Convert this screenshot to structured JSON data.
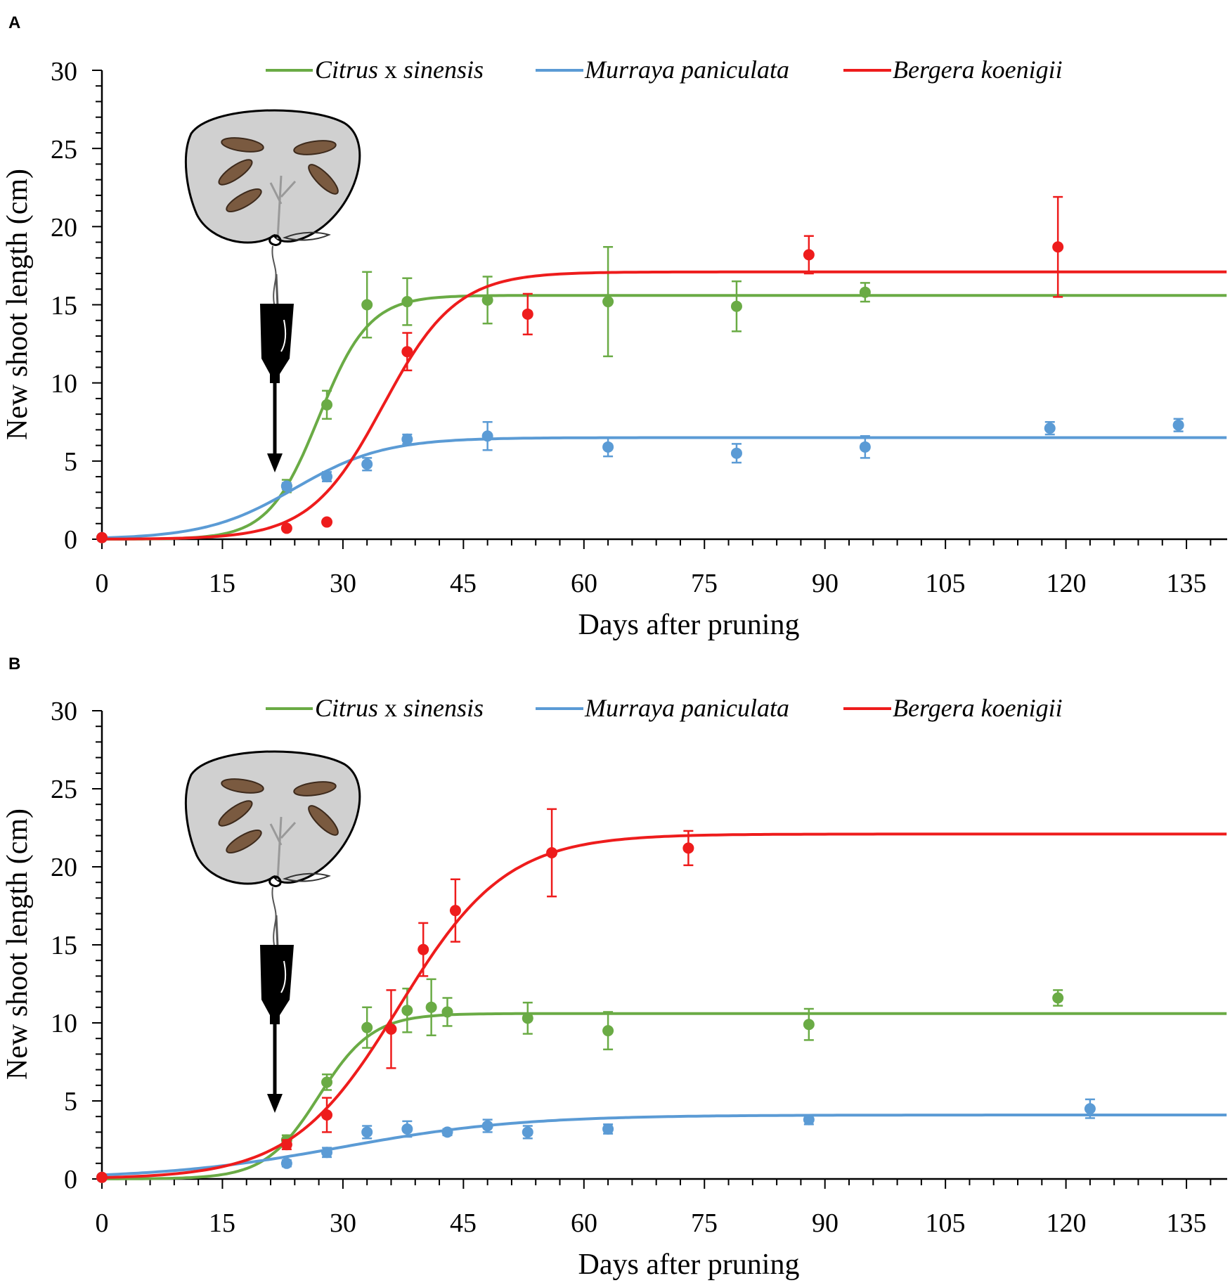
{
  "chart_data": [
    {
      "type": "line",
      "panel": "A",
      "title": "",
      "xlabel": "Days after pruning",
      "ylabel": "New shoot length (cm)",
      "xlim": [
        0,
        140
      ],
      "ylim": [
        0,
        30
      ],
      "xticks": [
        "0",
        "15",
        "30",
        "45",
        "60",
        "75",
        "90",
        "105",
        "120",
        "135"
      ],
      "yticks": [
        "0",
        "5",
        "10",
        "15",
        "20",
        "25",
        "30"
      ],
      "legend_position": "top",
      "legend": {
        "prefix": "Citrus",
        "sep": " x ",
        "suffix": "sinensis"
      },
      "series": [
        {
          "name": "Citrus x sinensis",
          "color": "#6aab45",
          "fit": {
            "asymptote": 15.6,
            "k": 0.32,
            "midpoint": 27
          },
          "points": [
            [
              0,
              0.1,
              0
            ],
            [
              23,
              3.4,
              0.4
            ],
            [
              28,
              8.6,
              0.9
            ],
            [
              33,
              15.0,
              2.1
            ],
            [
              38,
              15.2,
              1.5
            ],
            [
              48,
              15.3,
              1.5
            ],
            [
              63,
              15.2,
              3.5
            ],
            [
              79,
              14.9,
              1.6
            ],
            [
              95,
              15.8,
              0.6
            ]
          ]
        },
        {
          "name": "Murraya paniculata",
          "color": "#5b9bd5",
          "fit": {
            "asymptote": 6.5,
            "k": 0.18,
            "midpoint": 24
          },
          "points": [
            [
              0,
              0.1,
              0
            ],
            [
              23,
              3.4,
              0.2
            ],
            [
              28,
              4.0,
              0.3
            ],
            [
              33,
              4.8,
              0.4
            ],
            [
              38,
              6.4,
              0.3
            ],
            [
              48,
              6.6,
              0.9
            ],
            [
              63,
              5.9,
              0.6
            ],
            [
              79,
              5.5,
              0.6
            ],
            [
              95,
              5.9,
              0.7
            ],
            [
              118,
              7.1,
              0.4
            ],
            [
              134,
              7.3,
              0.4
            ]
          ]
        },
        {
          "name": "Bergera koenigii",
          "color": "#ee1c1c",
          "fit": {
            "asymptote": 17.1,
            "k": 0.22,
            "midpoint": 35
          },
          "points": [
            [
              0,
              0.1,
              0
            ],
            [
              23,
              0.7,
              0
            ],
            [
              28,
              1.1,
              0
            ],
            [
              38,
              12.0,
              1.2
            ],
            [
              53,
              14.4,
              1.3
            ],
            [
              88,
              18.2,
              1.2
            ],
            [
              119,
              18.7,
              3.2
            ]
          ]
        }
      ]
    },
    {
      "type": "line",
      "panel": "B",
      "title": "",
      "xlabel": "Days after pruning",
      "ylabel": "New shoot length (cm)",
      "xlim": [
        0,
        140
      ],
      "ylim": [
        0,
        30
      ],
      "xticks": [
        "0",
        "15",
        "30",
        "45",
        "60",
        "75",
        "90",
        "105",
        "120",
        "135"
      ],
      "yticks": [
        "0",
        "5",
        "10",
        "15",
        "20",
        "25",
        "30"
      ],
      "legend_position": "top",
      "legend": {
        "prefix": "Citrus",
        "sep": " x ",
        "suffix": "sinensis"
      },
      "series": [
        {
          "name": "Citrus x sinensis",
          "color": "#6aab45",
          "fit": {
            "asymptote": 10.6,
            "k": 0.3,
            "midpoint": 27
          },
          "points": [
            [
              0,
              0.1,
              0
            ],
            [
              23,
              2.5,
              0.3
            ],
            [
              28,
              6.2,
              0.5
            ],
            [
              33,
              9.7,
              1.3
            ],
            [
              38,
              10.8,
              1.4
            ],
            [
              41,
              11.0,
              1.8
            ],
            [
              43,
              10.7,
              0.9
            ],
            [
              53,
              10.3,
              1.0
            ],
            [
              63,
              9.5,
              1.2
            ],
            [
              88,
              9.9,
              1.0
            ],
            [
              119,
              11.6,
              0.5
            ]
          ]
        },
        {
          "name": "Murraya paniculata",
          "color": "#5b9bd5",
          "fit": {
            "asymptote": 4.1,
            "k": 0.09,
            "midpoint": 30
          },
          "points": [
            [
              0,
              0.1,
              0
            ],
            [
              23,
              1.0,
              0.2
            ],
            [
              28,
              1.7,
              0.3
            ],
            [
              33,
              3.0,
              0.4
            ],
            [
              38,
              3.2,
              0.5
            ],
            [
              43,
              3.0,
              0.2
            ],
            [
              48,
              3.4,
              0.4
            ],
            [
              53,
              3.0,
              0.4
            ],
            [
              63,
              3.2,
              0.3
            ],
            [
              88,
              3.8,
              0.3
            ],
            [
              123,
              4.5,
              0.6
            ]
          ]
        },
        {
          "name": "Bergera koenigii",
          "color": "#ee1c1c",
          "fit": {
            "asymptote": 22.1,
            "k": 0.15,
            "midpoint": 37
          },
          "points": [
            [
              0,
              0.1,
              0
            ],
            [
              23,
              2.2,
              0.3
            ],
            [
              28,
              4.1,
              1.1
            ],
            [
              36,
              9.6,
              2.5
            ],
            [
              40,
              14.7,
              1.7
            ],
            [
              44,
              17.2,
              2.0
            ],
            [
              56,
              20.9,
              2.8
            ],
            [
              73,
              21.2,
              1.1
            ]
          ]
        }
      ]
    }
  ]
}
